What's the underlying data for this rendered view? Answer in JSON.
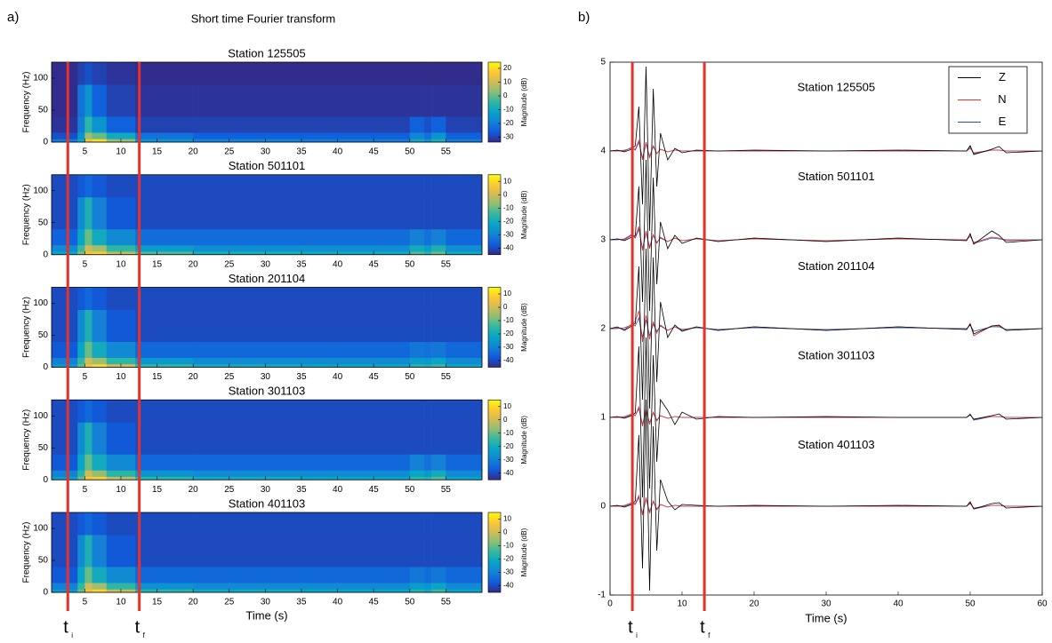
{
  "figure": {
    "label_a": "a)",
    "title_a": "Short time Fourier transform",
    "label_b": "b)",
    "colormap": [
      "#352a87",
      "#0f5cdd",
      "#1481d6",
      "#06a4ca",
      "#2eb7a4",
      "#87bf77",
      "#d1bb59",
      "#fec832",
      "#f9fb0e"
    ],
    "markers_a": [
      {
        "label": "t",
        "subscript": "i",
        "x": 2.65
      },
      {
        "label": "t",
        "subscript": "f",
        "x": 12.55
      }
    ]
  },
  "chart_data": [
    {
      "type": "heatmap",
      "title": "Station 125505",
      "ylabel": "Frequency (Hz)",
      "cblabel": "Magnitude (dB)",
      "xlim": [
        0.4,
        60
      ],
      "ylim": [
        0,
        125
      ],
      "xticks": [
        5,
        10,
        15,
        20,
        25,
        30,
        35,
        40,
        45,
        50,
        55
      ],
      "yticks": [
        0,
        50,
        100
      ],
      "clim": [
        -33.5,
        24.5
      ],
      "cbticks": [
        20,
        10,
        0,
        -10,
        -20,
        -30
      ],
      "x_edges": [
        0.4,
        4,
        5,
        6,
        8,
        12,
        20,
        35,
        50,
        52,
        53,
        55,
        60
      ],
      "y_edges": [
        0,
        5,
        15,
        40,
        90,
        125
      ],
      "z": [
        [
          -20,
          -10,
          15,
          20,
          5,
          -15,
          -18,
          -20,
          -10,
          -15,
          -8,
          -20
        ],
        [
          -28,
          -15,
          5,
          0,
          -10,
          -22,
          -25,
          -25,
          -18,
          -22,
          -15,
          -25
        ],
        [
          -32,
          -20,
          -5,
          -15,
          -25,
          -30,
          -30,
          -30,
          -25,
          -28,
          -25,
          -30
        ],
        [
          -33,
          -22,
          -15,
          -25,
          -30,
          -32,
          -32,
          -32,
          -32,
          -32,
          -32,
          -32
        ],
        [
          -33,
          -30,
          -28,
          -30,
          -32,
          -33,
          -33,
          -33,
          -33,
          -33,
          -33,
          -33
        ]
      ]
    },
    {
      "type": "heatmap",
      "title": "Station 501101",
      "ylabel": "Frequency (Hz)",
      "cblabel": "Magnitude (dB)",
      "xlim": [
        0.4,
        60
      ],
      "ylim": [
        0,
        125
      ],
      "xticks": [
        5,
        10,
        15,
        20,
        25,
        30,
        35,
        40,
        45,
        50,
        55
      ],
      "yticks": [
        0,
        50,
        100
      ],
      "clim": [
        -45,
        15
      ],
      "cbticks": [
        10,
        0,
        -10,
        -20,
        -30,
        -40
      ],
      "x_edges": [
        0.4,
        4,
        5,
        6,
        8,
        12,
        20,
        35,
        50,
        52,
        53,
        55,
        60
      ],
      "y_edges": [
        0,
        5,
        15,
        40,
        90,
        125
      ],
      "z": [
        [
          -22,
          -8,
          5,
          8,
          -2,
          -12,
          -18,
          -20,
          -12,
          -16,
          -10,
          -20
        ],
        [
          -28,
          -14,
          0,
          -5,
          -15,
          -24,
          -27,
          -27,
          -20,
          -24,
          -18,
          -27
        ],
        [
          -36,
          -22,
          -10,
          -20,
          -28,
          -34,
          -34,
          -34,
          -30,
          -33,
          -30,
          -35
        ],
        [
          -40,
          -28,
          -18,
          -30,
          -38,
          -40,
          -40,
          -40,
          -40,
          -40,
          -40,
          -40
        ],
        [
          -40,
          -38,
          -35,
          -38,
          -40,
          -40,
          -40,
          -40,
          -40,
          -40,
          -40,
          -40
        ]
      ]
    },
    {
      "type": "heatmap",
      "title": "Station 201104",
      "ylabel": "Frequency (Hz)",
      "cblabel": "Magnitude (dB)",
      "xlim": [
        0.4,
        60
      ],
      "ylim": [
        0,
        125
      ],
      "xticks": [
        5,
        10,
        15,
        20,
        25,
        30,
        35,
        40,
        45,
        50,
        55
      ],
      "yticks": [
        0,
        50,
        100
      ],
      "clim": [
        -45,
        15
      ],
      "cbticks": [
        10,
        0,
        -10,
        -20,
        -30,
        -40
      ],
      "x_edges": [
        0.4,
        4,
        5,
        6,
        8,
        12,
        20,
        35,
        50,
        52,
        53,
        55,
        60
      ],
      "y_edges": [
        0,
        5,
        15,
        40,
        90,
        125
      ],
      "z": [
        [
          -25,
          -10,
          5,
          10,
          0,
          -15,
          -20,
          -22,
          -16,
          -18,
          -14,
          -22
        ],
        [
          -30,
          -15,
          0,
          -5,
          -15,
          -25,
          -28,
          -28,
          -24,
          -25,
          -22,
          -28
        ],
        [
          -38,
          -22,
          -10,
          -20,
          -28,
          -35,
          -35,
          -35,
          -32,
          -33,
          -32,
          -35
        ],
        [
          -40,
          -28,
          -18,
          -30,
          -38,
          -40,
          -40,
          -40,
          -40,
          -40,
          -40,
          -40
        ],
        [
          -40,
          -38,
          -35,
          -38,
          -40,
          -40,
          -40,
          -40,
          -40,
          -40,
          -40,
          -40
        ]
      ]
    },
    {
      "type": "heatmap",
      "title": "Station 301103",
      "ylabel": "Frequency (Hz)",
      "cblabel": "Magnitude (dB)",
      "xlim": [
        0.4,
        60
      ],
      "ylim": [
        0,
        125
      ],
      "xticks": [
        5,
        10,
        15,
        20,
        25,
        30,
        35,
        40,
        45,
        50,
        55
      ],
      "yticks": [
        0,
        50,
        100
      ],
      "clim": [
        -45,
        15
      ],
      "cbticks": [
        10,
        0,
        -10,
        -20,
        -30,
        -40
      ],
      "x_edges": [
        0.4,
        4,
        5,
        6,
        8,
        12,
        20,
        35,
        50,
        52,
        53,
        55,
        60
      ],
      "y_edges": [
        0,
        5,
        15,
        40,
        90,
        125
      ],
      "z": [
        [
          -24,
          -10,
          6,
          8,
          -2,
          -16,
          -20,
          -22,
          -15,
          -18,
          -12,
          -22
        ],
        [
          -30,
          -16,
          0,
          -6,
          -16,
          -26,
          -28,
          -28,
          -22,
          -25,
          -20,
          -28
        ],
        [
          -38,
          -22,
          -10,
          -20,
          -28,
          -35,
          -35,
          -35,
          -30,
          -33,
          -30,
          -35
        ],
        [
          -40,
          -28,
          -18,
          -30,
          -38,
          -40,
          -40,
          -40,
          -40,
          -40,
          -40,
          -40
        ],
        [
          -40,
          -38,
          -35,
          -38,
          -40,
          -40,
          -40,
          -40,
          -40,
          -40,
          -40,
          -40
        ]
      ]
    },
    {
      "type": "heatmap",
      "title": "Station 401103",
      "ylabel": "Frequency (Hz)",
      "cblabel": "Magnitude (dB)",
      "xlabel": "Time (s)",
      "xlim": [
        0.4,
        60
      ],
      "ylim": [
        0,
        125
      ],
      "xticks": [
        5,
        10,
        15,
        20,
        25,
        30,
        35,
        40,
        45,
        50,
        55
      ],
      "yticks": [
        0,
        50,
        100
      ],
      "clim": [
        -45,
        15
      ],
      "cbticks": [
        10,
        0,
        -10,
        -20,
        -30,
        -40
      ],
      "x_edges": [
        0.4,
        4,
        5,
        6,
        8,
        12,
        20,
        35,
        50,
        52,
        53,
        55,
        60
      ],
      "y_edges": [
        0,
        5,
        15,
        40,
        90,
        125
      ],
      "z": [
        [
          -25,
          -10,
          5,
          9,
          -1,
          -16,
          -20,
          -22,
          -17,
          -20,
          -14,
          -22
        ],
        [
          -30,
          -15,
          0,
          -5,
          -15,
          -26,
          -28,
          -28,
          -24,
          -26,
          -22,
          -28
        ],
        [
          -38,
          -22,
          -10,
          -20,
          -28,
          -35,
          -35,
          -35,
          -32,
          -34,
          -32,
          -35
        ],
        [
          -40,
          -28,
          -18,
          -30,
          -38,
          -40,
          -40,
          -40,
          -40,
          -40,
          -40,
          -40
        ],
        [
          -40,
          -38,
          -35,
          -38,
          -40,
          -40,
          -40,
          -40,
          -40,
          -40,
          -40,
          -40
        ]
      ]
    },
    {
      "type": "line",
      "xlabel": "Time (s)",
      "xlim": [
        0,
        60
      ],
      "ylim": [
        -1,
        5
      ],
      "xticks": [
        0,
        10,
        20,
        30,
        40,
        50,
        60
      ],
      "yticks": [
        -1,
        0,
        1,
        2,
        3,
        4,
        5
      ],
      "grid": false,
      "legend": "upper right",
      "annotations": [
        "Station 125505",
        "Station 501101",
        "Station 201104",
        "Station 301103",
        "Station 401103"
      ],
      "markers": [
        {
          "label": "t",
          "subscript": "i",
          "x": 3.1
        },
        {
          "label": "t",
          "subscript": "f",
          "x": 13.1
        }
      ],
      "x": [
        0,
        1,
        2,
        3,
        3.5,
        4,
        4.5,
        5,
        5.5,
        6,
        6.5,
        7,
        8,
        9,
        10,
        12,
        15,
        20,
        30,
        40,
        49.5,
        50,
        50.5,
        53,
        54,
        55,
        60
      ],
      "series": [
        {
          "name": "Z",
          "color": "#000000",
          "values": [
            [
              4,
              4.01,
              3.99,
              4.02,
              4.06,
              4.5,
              3.4,
              4.95,
              3.1,
              4.7,
              3.6,
              4.2,
              3.9,
              4.03,
              3.98,
              4.01,
              4,
              4.01,
              4,
              4.01,
              4,
              4.06,
              3.96,
              4.02,
              4.05,
              3.98,
              4
            ],
            [
              3,
              3.01,
              2.99,
              3.03,
              3.05,
              3.6,
              2.3,
              3.9,
              2.2,
              3.7,
              2.5,
              3.2,
              2.9,
              3.05,
              2.96,
              3.02,
              2.98,
              3.02,
              2.98,
              3.02,
              2.99,
              3.07,
              2.95,
              3.1,
              3.05,
              2.97,
              3
            ],
            [
              2,
              2.02,
              1.98,
              2.03,
              2.06,
              2.7,
              1.2,
              2.9,
              1.1,
              2.8,
              1.4,
              2.3,
              1.9,
              2.04,
              1.97,
              2.02,
              1.98,
              2.02,
              1.98,
              2.02,
              1.99,
              2.05,
              1.94,
              2.03,
              2.04,
              1.98,
              2
            ],
            [
              1,
              1.01,
              0.99,
              1.02,
              1.05,
              1.8,
              0.1,
              1.9,
              0.2,
              1.7,
              0.5,
              1.2,
              1.08,
              0.92,
              1.06,
              0.98,
              1.01,
              1,
              1.01,
              1,
              1,
              1.03,
              0.98,
              1.02,
              1.04,
              0.98,
              1
            ],
            [
              0,
              0.01,
              -0.01,
              0.02,
              0.06,
              0.8,
              -0.7,
              1.2,
              -0.95,
              0.9,
              -0.5,
              0.3,
              0.06,
              -0.04,
              0.02,
              0.01,
              0,
              0.01,
              0,
              0.01,
              0,
              0.05,
              -0.03,
              0.03,
              0.04,
              -0.02,
              0
            ]
          ]
        },
        {
          "name": "N",
          "color": "#e8312a",
          "values": [
            [
              4,
              4,
              4.01,
              4.03,
              4.02,
              4.12,
              3.9,
              4.1,
              3.92,
              4.06,
              3.97,
              4.02,
              3.99,
              4.01,
              4,
              4,
              4,
              4,
              4,
              4,
              4,
              4.03,
              3.98,
              4.01,
              4.01,
              4,
              4
            ],
            [
              3,
              3.01,
              3,
              3.05,
              3.03,
              3.15,
              2.88,
              3.1,
              2.9,
              3.06,
              2.96,
              3.03,
              2.98,
              3.02,
              2.99,
              3.01,
              2.99,
              3.01,
              2.99,
              3.01,
              3,
              3.04,
              2.97,
              3.03,
              3.02,
              2.99,
              3
            ],
            [
              2,
              2.01,
              1.99,
              2.05,
              2.08,
              2.2,
              1.85,
              2.15,
              1.88,
              2.08,
              1.95,
              2.04,
              1.98,
              2.02,
              1.98,
              2.02,
              1.98,
              2.02,
              1.98,
              2.02,
              1.99,
              2.06,
              1.92,
              2.03,
              2.03,
              1.98,
              2
            ],
            [
              1,
              1,
              1.01,
              1.04,
              1.02,
              1.12,
              0.9,
              1.1,
              0.92,
              1.06,
              0.96,
              1.02,
              0.99,
              1.01,
              1,
              1,
              1,
              1,
              1,
              1,
              1,
              1.03,
              0.98,
              1.01,
              1.01,
              1,
              1
            ],
            [
              0,
              0,
              0.01,
              0.04,
              0.03,
              0.12,
              -0.1,
              0.1,
              -0.08,
              0.06,
              -0.04,
              0.02,
              -0.01,
              0.01,
              0,
              0,
              0,
              0,
              0,
              0,
              0,
              0.03,
              -0.02,
              0.01,
              0.01,
              0,
              0
            ]
          ]
        },
        {
          "name": "E",
          "color": "#1f4fb4",
          "values": [
            [
              4,
              4,
              4,
              4.04,
              4.01,
              4.1,
              3.92,
              4.08,
              3.94,
              4.05,
              3.97,
              4.02,
              3.99,
              4.01,
              4,
              4,
              4,
              4,
              4,
              4,
              4,
              4.05,
              3.97,
              4.01,
              4.01,
              4,
              4
            ],
            [
              3,
              3,
              3.01,
              3.06,
              3.02,
              3.12,
              2.9,
              3.08,
              2.92,
              3.05,
              2.97,
              3.02,
              2.98,
              3.02,
              2.99,
              3.01,
              2.99,
              3.01,
              2.99,
              3.01,
              3,
              3.06,
              2.96,
              3.02,
              3.01,
              3,
              3
            ],
            [
              2,
              2,
              2.01,
              2.04,
              2.03,
              2.12,
              1.9,
              2.1,
              1.92,
              2.05,
              1.97,
              2.03,
              1.98,
              2.02,
              1.99,
              2.01,
              1.99,
              2.01,
              1.99,
              2.01,
              2,
              2.04,
              1.97,
              2.02,
              2.02,
              1.99,
              2
            ],
            [
              1,
              1,
              1,
              1.03,
              1.02,
              1.1,
              0.92,
              1.08,
              0.94,
              1.05,
              0.97,
              1.02,
              0.99,
              1.01,
              1,
              1,
              1,
              1,
              1,
              1,
              1,
              1.04,
              0.97,
              1.01,
              1.01,
              1,
              1
            ],
            [
              0,
              0,
              0,
              0.03,
              0.02,
              0.1,
              -0.08,
              0.08,
              -0.06,
              0.05,
              -0.03,
              0.02,
              -0.01,
              0.01,
              0,
              0,
              0,
              0,
              0,
              0,
              0,
              0.04,
              -0.03,
              0.01,
              0.01,
              0,
              0
            ]
          ]
        }
      ]
    }
  ]
}
